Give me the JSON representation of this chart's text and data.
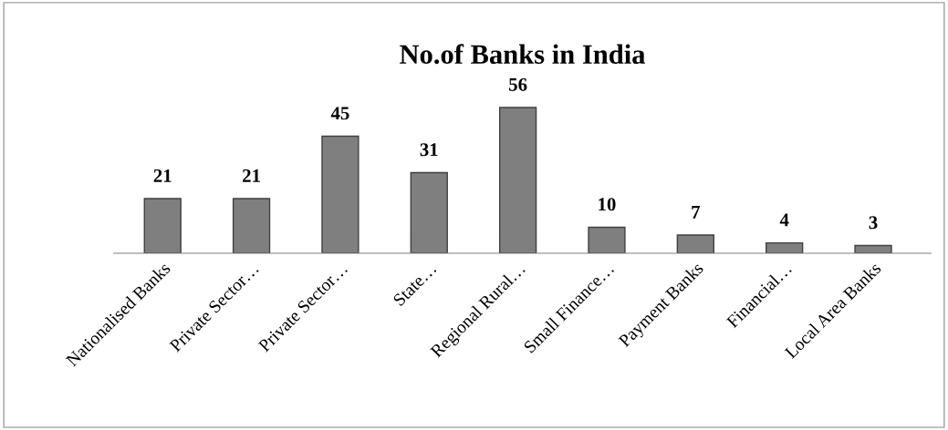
{
  "chart_data": {
    "type": "bar",
    "title": "No.of Banks in India",
    "categories": [
      "Nationalised Banks",
      "Private Sector…",
      "Private Sector…",
      "State…",
      "Regional Rural…",
      "Small Finance…",
      "Payment Banks",
      "Financial…",
      "Local Area Banks"
    ],
    "values": [
      21,
      21,
      45,
      31,
      56,
      10,
      7,
      4,
      3
    ],
    "color": "#7f7f7f",
    "data_labels": true,
    "grid": false,
    "legend": false
  }
}
